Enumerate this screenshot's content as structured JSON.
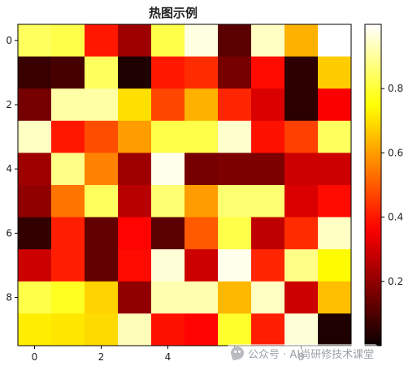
{
  "chart_data": {
    "type": "heatmap",
    "title": "热图示例",
    "xlabel": "",
    "ylabel": "",
    "colormap": "hot",
    "vmin": 0.0,
    "vmax": 1.0,
    "xticks": [
      "0",
      "2",
      "4",
      "6",
      "8"
    ],
    "yticks": [
      "0",
      "2",
      "4",
      "6",
      "8"
    ],
    "colorbar_ticks": [
      "0.2",
      "0.4",
      "0.6",
      "0.8"
    ],
    "colorbar_tick_values": [
      0.2,
      0.4,
      0.6,
      0.8
    ],
    "values": [
      [
        0.84,
        0.82,
        0.4,
        0.22,
        0.82,
        0.97,
        0.12,
        0.94,
        0.63,
        1.0
      ],
      [
        0.07,
        0.09,
        0.84,
        0.03,
        0.4,
        0.43,
        0.16,
        0.38,
        0.05,
        0.67
      ],
      [
        0.16,
        0.91,
        0.91,
        0.7,
        0.47,
        0.63,
        0.42,
        0.31,
        0.05,
        0.36
      ],
      [
        0.94,
        0.4,
        0.48,
        0.6,
        0.82,
        0.82,
        0.95,
        0.39,
        0.46,
        0.84
      ],
      [
        0.22,
        0.88,
        0.56,
        0.22,
        0.98,
        0.16,
        0.17,
        0.17,
        0.29,
        0.29
      ],
      [
        0.2,
        0.54,
        0.84,
        0.26,
        0.86,
        0.6,
        0.86,
        0.86,
        0.31,
        0.38
      ],
      [
        0.06,
        0.41,
        0.13,
        0.37,
        0.12,
        0.5,
        0.82,
        0.27,
        0.43,
        0.94
      ],
      [
        0.29,
        0.41,
        0.13,
        0.38,
        0.96,
        0.29,
        0.98,
        0.42,
        0.88,
        0.74
      ],
      [
        0.82,
        0.78,
        0.68,
        0.2,
        0.92,
        0.92,
        0.64,
        0.94,
        0.29,
        0.65
      ],
      [
        0.72,
        0.71,
        0.69,
        0.93,
        0.39,
        0.37,
        0.79,
        0.41,
        0.96,
        0.03
      ]
    ],
    "grid": false,
    "legend": "none"
  },
  "watermark": {
    "text": "公众号 · AI尚研修技术课堂",
    "icon": "wechat-icon"
  }
}
